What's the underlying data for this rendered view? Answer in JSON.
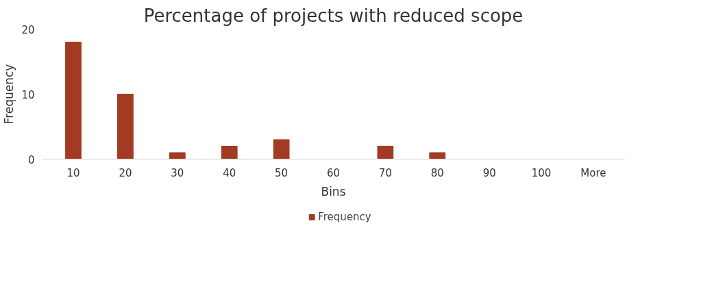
{
  "chart_data": {
    "type": "bar",
    "title": "Percentage of projects with reduced scope",
    "xlabel": "Bins",
    "ylabel": "Frequency",
    "categories": [
      "10",
      "20",
      "30",
      "40",
      "50",
      "60",
      "70",
      "80",
      "90",
      "100",
      "More"
    ],
    "series": [
      {
        "name": "Frequency",
        "color": "#a33a22",
        "values": [
          18,
          10,
          1,
          2,
          3,
          0,
          2,
          1,
          0,
          0,
          0
        ]
      }
    ],
    "ylim": [
      0,
      20
    ],
    "yticks": [
      0,
      10,
      20
    ],
    "grid": false,
    "legend": "bottom"
  }
}
